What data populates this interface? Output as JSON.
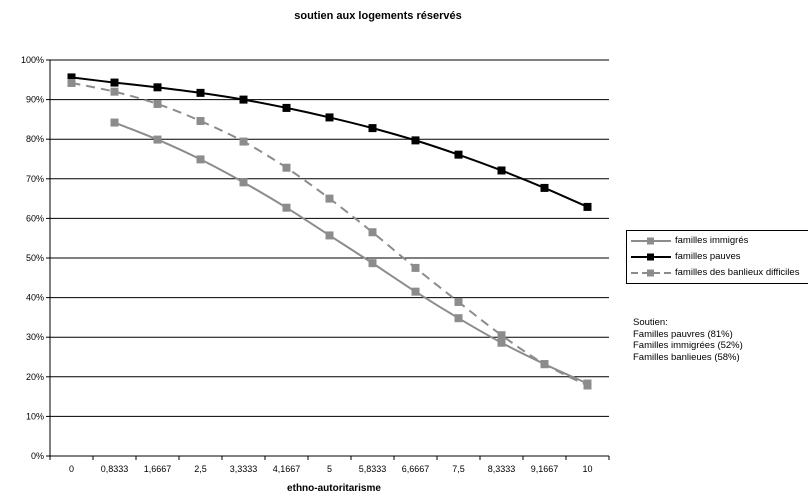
{
  "chart_data": {
    "type": "line",
    "title": "soutien aux logements réservés",
    "xlabel": "ethno-autoritarisme",
    "ylabel": "",
    "ylim": [
      0,
      100
    ],
    "y_ticks": [
      "0%",
      "10%",
      "20%",
      "30%",
      "40%",
      "50%",
      "60%",
      "70%",
      "80%",
      "90%",
      "100%"
    ],
    "categories": [
      "0",
      "0,8333",
      "1,6667",
      "2,5",
      "3,3333",
      "4,1667",
      "5",
      "5,8333",
      "6,6667",
      "7,5",
      "8,3333",
      "9,1667",
      "10"
    ],
    "grid": true,
    "legend_position": "right",
    "series": [
      {
        "name": "familles immigrés",
        "color": "#8c8c8c",
        "dash": "solid",
        "marker": "square",
        "values": [
          null,
          84.2,
          79.9,
          74.9,
          69.1,
          62.7,
          55.7,
          48.7,
          41.5,
          34.8,
          28.6,
          23.2,
          18.3
        ]
      },
      {
        "name": "familles pauves",
        "color": "#000000",
        "dash": "solid",
        "marker": "square",
        "values": [
          95.6,
          94.3,
          93.1,
          91.7,
          90.0,
          87.9,
          85.5,
          82.8,
          79.7,
          76.1,
          72.1,
          67.7,
          62.9
        ]
      },
      {
        "name": "familles des banlieux difficiles",
        "color": "#8c8c8c",
        "dash": "dashed",
        "marker": "square",
        "values": [
          94.2,
          92.0,
          88.9,
          84.6,
          79.4,
          72.8,
          65.0,
          56.5,
          47.5,
          38.9,
          30.5,
          23.2,
          17.8
        ]
      }
    ]
  },
  "notes": {
    "heading": "Soutien:",
    "lines": [
      "Familles pauvres (81%)",
      "Familles immigrées (52%)",
      "Familles banlieues (58%)"
    ]
  }
}
